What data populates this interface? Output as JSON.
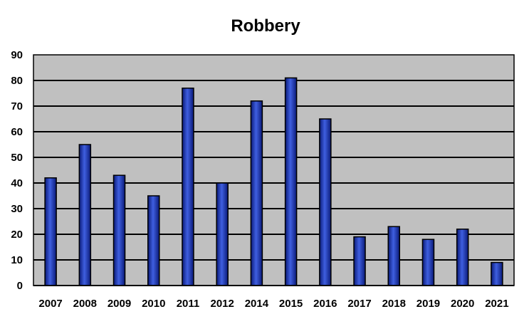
{
  "chart_data": {
    "type": "bar",
    "title": "Robbery",
    "xlabel": "",
    "ylabel": "",
    "categories": [
      "2007",
      "2008",
      "2009",
      "2010",
      "2011",
      "2012",
      "2014",
      "2015",
      "2016",
      "2017",
      "2018",
      "2019",
      "2020",
      "2021"
    ],
    "values": [
      42,
      55,
      43,
      35,
      77,
      40,
      72,
      81,
      65,
      19,
      23,
      18,
      22,
      9
    ],
    "ylim": [
      0,
      90
    ],
    "yticks": [
      "0",
      "10",
      "20",
      "30",
      "40",
      "50",
      "60",
      "70",
      "80",
      "90"
    ],
    "grid": true,
    "legend": "none",
    "colors": {
      "bar": "#1a2fa8",
      "bar_highlight": "#4d6be8",
      "bar_edge": "#000000",
      "plot_bg": "#c0c0c0",
      "grid": "#000000"
    }
  }
}
